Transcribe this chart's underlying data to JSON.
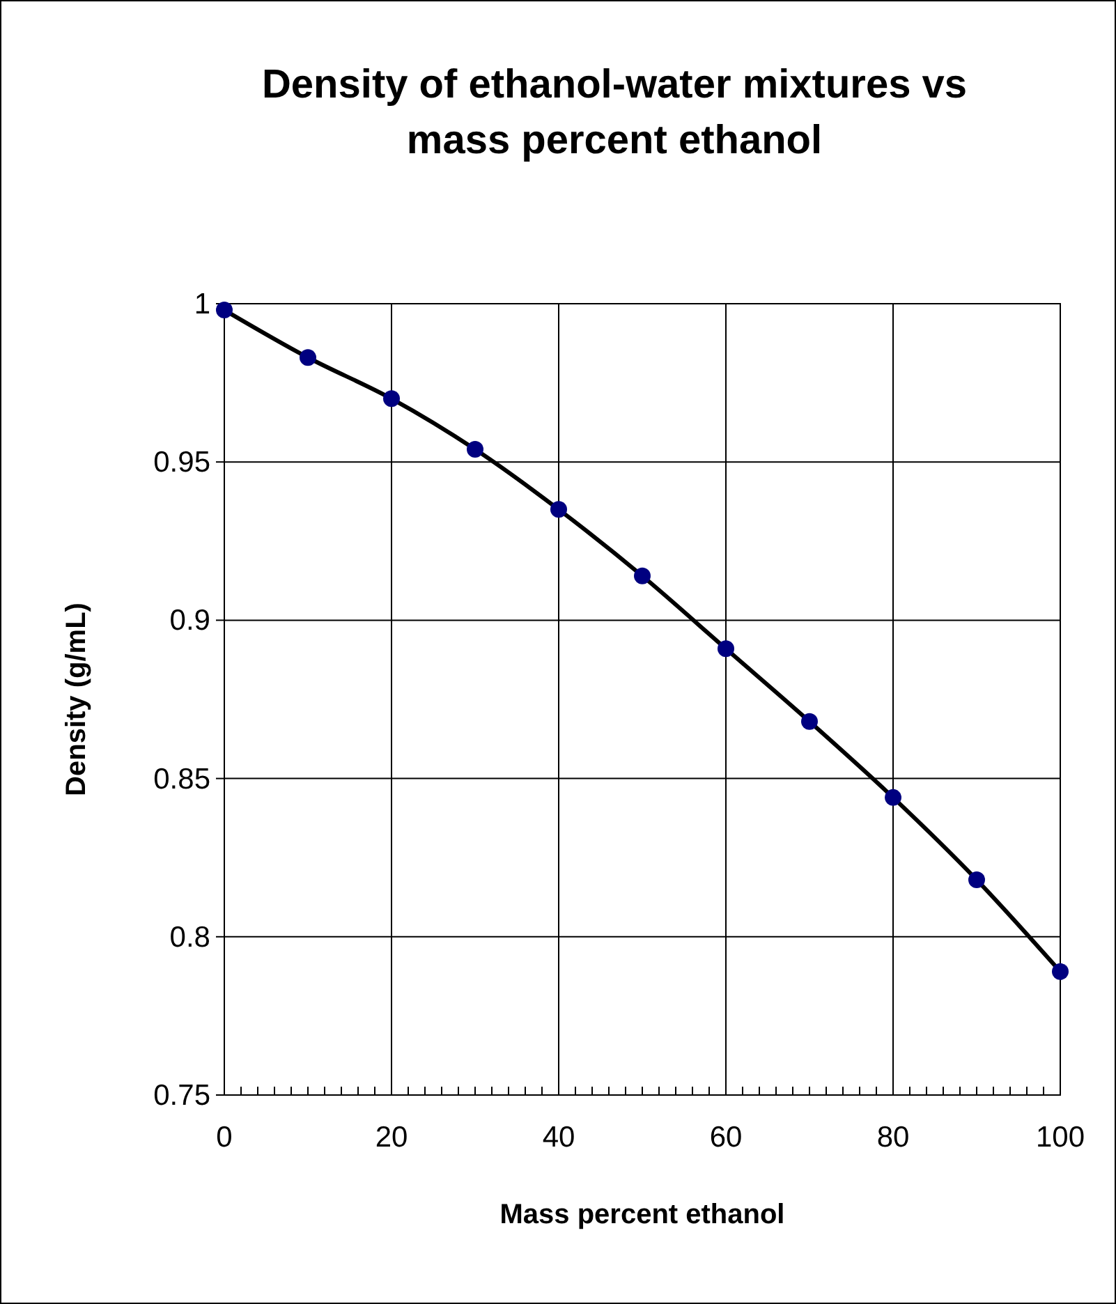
{
  "chart_data": {
    "type": "scatter",
    "title": "Density of ethanol-water mixtures vs mass percent ethanol",
    "xlabel": "Mass percent ethanol",
    "ylabel": "Density (g/mL)",
    "x": [
      0,
      10,
      20,
      30,
      40,
      50,
      60,
      70,
      80,
      90,
      100
    ],
    "series": [
      {
        "type": "line",
        "color": "#000000",
        "marker": "none",
        "values": [
          0.998,
          0.983,
          0.97,
          0.954,
          0.935,
          0.914,
          0.891,
          0.868,
          0.844,
          0.818,
          0.789
        ]
      },
      {
        "color": "#000080",
        "marker": "circle",
        "values": [
          0.998,
          0.983,
          0.97,
          0.954,
          0.935,
          0.914,
          0.891,
          0.868,
          0.844,
          0.818,
          0.789
        ]
      }
    ],
    "xlim": [
      0,
      100
    ],
    "xticks": [
      0,
      {
        "value": 2,
        "label": null
      },
      {
        "value": 4,
        "label": null
      },
      {
        "value": 6,
        "label": null
      },
      {
        "value": 8,
        "label": null
      },
      {
        "value": 10,
        "label": null
      },
      {
        "value": 12,
        "label": null
      },
      {
        "value": 14,
        "label": null
      },
      {
        "value": 16,
        "label": null
      },
      {
        "value": 18,
        "label": null
      },
      20,
      {
        "value": 22,
        "label": null
      },
      {
        "value": 24,
        "label": null
      },
      {
        "value": 26,
        "label": null
      },
      {
        "value": 28,
        "label": null
      },
      {
        "value": 30,
        "label": null
      },
      {
        "value": 32,
        "label": null
      },
      {
        "value": 34,
        "label": null
      },
      {
        "value": 36,
        "label": null
      },
      {
        "value": 38,
        "label": null
      },
      40,
      {
        "value": 42,
        "label": null
      },
      {
        "value": 44,
        "label": null
      },
      {
        "value": 46,
        "label": null
      },
      {
        "value": 48,
        "label": null
      },
      {
        "value": 50,
        "label": null
      },
      {
        "value": 52,
        "label": null
      },
      {
        "value": 54,
        "label": null
      },
      {
        "value": 56,
        "label": null
      },
      {
        "value": 58,
        "label": null
      },
      60,
      {
        "value": 62,
        "label": null
      },
      {
        "value": 64,
        "label": null
      },
      {
        "value": 66,
        "label": null
      },
      {
        "value": 68,
        "label": null
      },
      {
        "value": 70,
        "label": null
      },
      {
        "value": 72,
        "label": null
      },
      {
        "value": 74,
        "label": null
      },
      {
        "value": 76,
        "label": null
      },
      {
        "value": 78,
        "label": null
      },
      80,
      {
        "value": 82,
        "label": null
      },
      {
        "value": 84,
        "label": null
      },
      {
        "value": 86,
        "label": null
      },
      {
        "value": 88,
        "label": null
      },
      {
        "value": 90,
        "label": null
      },
      {
        "value": 92,
        "label": null
      },
      {
        "value": 94,
        "label": null
      },
      {
        "value": 96,
        "label": null
      },
      {
        "value": 98,
        "label": null
      },
      100
    ],
    "ylim": [
      0.75,
      1
    ],
    "yticks": [
      0.75,
      0.8,
      0.85,
      0.9,
      0.95,
      1
    ],
    "grid": true,
    "line_style": "solid"
  }
}
